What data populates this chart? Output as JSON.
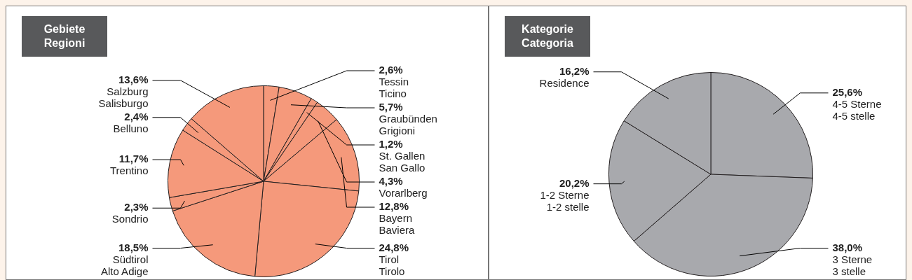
{
  "chart_data": [
    {
      "type": "pie",
      "title": "Gebiete\nRegioni",
      "categories": [
        "Tessin\nTicino",
        "Graubünden\nGrigioni",
        "St. Gallen\nSan Gallo",
        "Vorarlberg",
        "Bayern\nBaviera",
        "Tirol\nTirolo",
        "Südtirol\nAlto Adige",
        "Sondrio",
        "Trentino",
        "Belluno",
        "Salzburg\nSalisburgo"
      ],
      "values": [
        2.6,
        5.7,
        1.2,
        4.3,
        12.8,
        24.8,
        18.5,
        2.3,
        11.7,
        2.4,
        13.6
      ],
      "value_labels": [
        "2,6%",
        "5,7%",
        "1,2%",
        "4,3%",
        "12,8%",
        "24,8%",
        "18,5%",
        "2,3%",
        "11,7%",
        "2,4%",
        "13,6%"
      ],
      "colors": [
        "#f5997b",
        "#f5997b",
        "#f5997b",
        "#f5997b",
        "#f5997b",
        "#f5997b",
        "#f5997b",
        "#f5997b",
        "#f5997b",
        "#f5997b",
        "#f5997b"
      ]
    },
    {
      "type": "pie",
      "title": "Kategorie\nCategoria",
      "categories": [
        "4-5 Sterne\n4-5 stelle",
        "3 Sterne\n3 stelle",
        "1-2 Sterne\n1-2 stelle",
        "Residence"
      ],
      "values": [
        25.6,
        38.0,
        20.2,
        16.2
      ],
      "value_labels": [
        "25,6%",
        "38,0%",
        "20,2%",
        "16,2%"
      ],
      "colors": [
        "#a8a9ad",
        "#a8a9ad",
        "#a8a9ad",
        "#a8a9ad"
      ]
    }
  ]
}
